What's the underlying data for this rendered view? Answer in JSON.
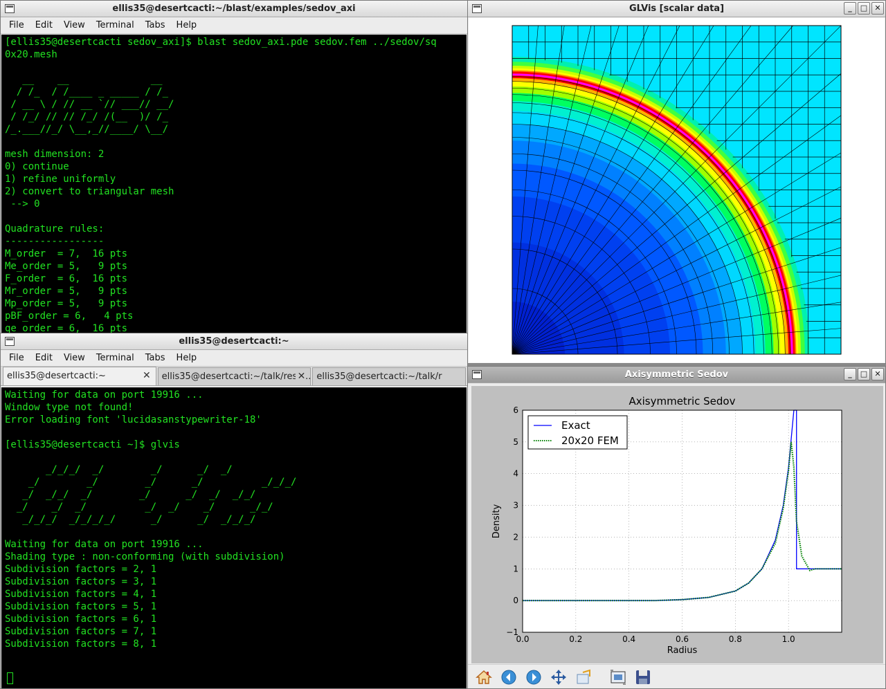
{
  "terminal1": {
    "title": "ellis35@desertcacti:~/blast/examples/sedov_axi",
    "menu": [
      "File",
      "Edit",
      "View",
      "Terminal",
      "Tabs",
      "Help"
    ],
    "content": "[ellis35@desertcacti sedov_axi]$ blast sedov_axi.pde sedov.fem ../sedov/sq\n0x20.mesh\n\n   __    __              __\n  / /_  / /____ _ _____ / /_\n / __ \\ / // __ `// ___// __/\n / /_/ // // /_/ /(__  )/ /_\n/_.___//_/ \\__,_//____/ \\__/\n\nmesh dimension: 2\n0) continue\n1) refine uniformly\n2) convert to triangular mesh\n --> 0\n\nQuadrature rules:\n-----------------\nM_order  = 7,  16 pts\nMe_order = 5,   9 pts\nF_order  = 6,  16 pts\nMr_order = 5,   9 pts\nMp_order = 5,   9 pts\npBF_order = 6,   4 pts\nqe_order = 6,  16 pts"
  },
  "terminal2": {
    "title": "ellis35@desertcacti:~",
    "menu": [
      "File",
      "Edit",
      "View",
      "Terminal",
      "Tabs",
      "Help"
    ],
    "tabs": [
      "ellis35@desertcacti:~",
      "ellis35@desertcacti:~/talk/resul...",
      "ellis35@desertcacti:~/talk/r"
    ],
    "content": "Waiting for data on port 19916 ...\nWindow type not found!\nError loading font 'lucidasanstypewriter-18'\n\n[ellis35@desertcacti ~]$ glvis\n\n       _/_/_/  _/        _/      _/  _/\n    _/        _/        _/      _/          _/_/_/\n   _/  _/_/  _/        _/      _/  _/  _/_/\n  _/    _/  _/          _/  _/    _/      _/_/\n   _/_/_/  _/_/_/_/      _/      _/  _/_/_/\n\nWaiting for data on port 19916 ...\nShading type : non-conforming (with subdivision)\nSubdivision factors = 2, 1\nSubdivision factors = 3, 1\nSubdivision factors = 4, 1\nSubdivision factors = 5, 1\nSubdivision factors = 6, 1\nSubdivision factors = 7, 1\nSubdivision factors = 8, 1"
  },
  "glvis": {
    "title": "GLVis [scalar data]"
  },
  "sedov_window": {
    "title": "Axisymmetric Sedov",
    "toolbar": [
      "home-icon",
      "back-icon",
      "forward-icon",
      "pan-icon",
      "zoom-icon",
      "subplots-icon",
      "save-icon"
    ]
  },
  "chart_data": {
    "type": "line",
    "title": "Axisymmetric Sedov",
    "xlabel": "Radius",
    "ylabel": "Density",
    "xlim": [
      0.0,
      1.2
    ],
    "ylim": [
      -1,
      6
    ],
    "xticks": [
      "0.0",
      "0.2",
      "0.4",
      "0.6",
      "0.8",
      "1.0"
    ],
    "yticks": [
      "−1",
      "0",
      "1",
      "2",
      "3",
      "4",
      "5",
      "6"
    ],
    "grid": true,
    "legend_position": "top-left",
    "series": [
      {
        "name": "Exact",
        "color": "#0000ff",
        "style": "solid",
        "x": [
          0.0,
          0.5,
          0.6,
          0.7,
          0.8,
          0.85,
          0.9,
          0.95,
          0.98,
          1.0,
          1.02,
          1.03,
          1.03,
          1.2
        ],
        "y": [
          0.0,
          0.0,
          0.03,
          0.1,
          0.3,
          0.55,
          1.0,
          1.9,
          3.0,
          4.2,
          6.0,
          6.0,
          1.0,
          1.0
        ]
      },
      {
        "name": "20x20 FEM",
        "color": "#008000",
        "style": "dotted",
        "x": [
          0.0,
          0.5,
          0.6,
          0.7,
          0.8,
          0.85,
          0.9,
          0.95,
          0.98,
          1.0,
          1.01,
          1.02,
          1.03,
          1.05,
          1.08,
          1.1,
          1.2
        ],
        "y": [
          0.0,
          0.0,
          0.03,
          0.1,
          0.3,
          0.55,
          1.0,
          1.8,
          2.9,
          4.1,
          5.0,
          4.2,
          2.5,
          1.4,
          0.95,
          1.0,
          1.0
        ]
      }
    ]
  }
}
